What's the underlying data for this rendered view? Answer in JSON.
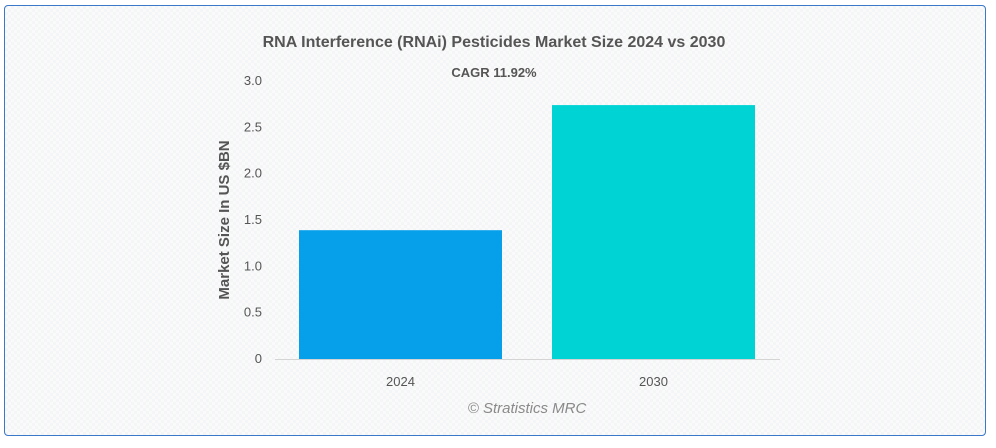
{
  "chart_data": {
    "type": "bar",
    "title": "RNA Interference (RNAi) Pesticides Market Size 2024 vs 2030",
    "subtitle": "CAGR 11.92%",
    "xlabel": "",
    "ylabel": "Market Size In US $BN",
    "categories": [
      "2024",
      "2030"
    ],
    "values": [
      1.39,
      2.74
    ],
    "colors": [
      "#069fea",
      "#00d3d3"
    ],
    "ylim": [
      0,
      3.0
    ],
    "yticks": [
      "0",
      "0.5",
      "1.0",
      "1.5",
      "2.0",
      "2.5",
      "3.0"
    ],
    "grid": false,
    "legend": "none"
  },
  "watermark": "© Stratistics MRC"
}
